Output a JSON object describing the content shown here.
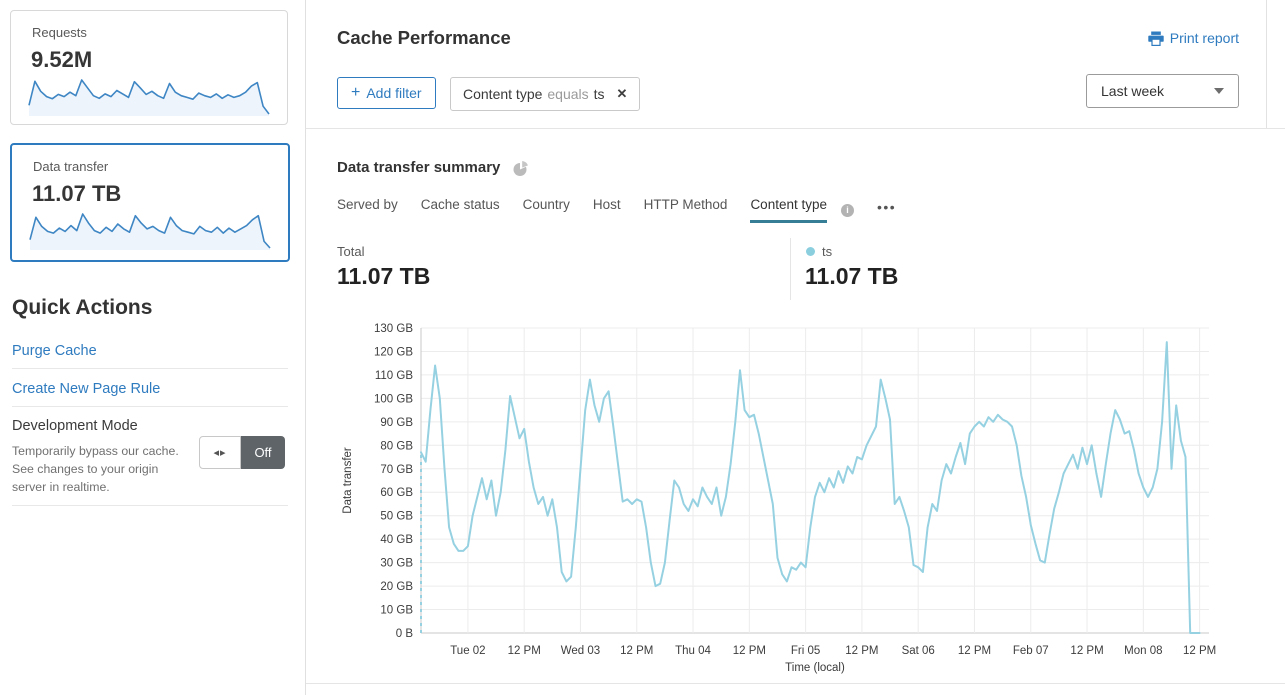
{
  "colors": {
    "accent": "#2f7bbf",
    "chart_line": "#96d1e2",
    "spark_line": "#3e86c4",
    "spark_fill": "#edf4fb",
    "tab_underline": "#367d96",
    "legend_dot": "#8bcfdf",
    "toggle_off_bg": "#5e6468",
    "grid": "#ececec",
    "axis": "#c8c8c8"
  },
  "sidebar": {
    "cards": [
      {
        "label": "Requests",
        "value": "9.52M",
        "selected": false,
        "spark": [
          30,
          85,
          62,
          50,
          45,
          55,
          50,
          60,
          52,
          88,
          70,
          52,
          46,
          56,
          50,
          64,
          56,
          48,
          84,
          70,
          55,
          62,
          52,
          46,
          80,
          60,
          52,
          48,
          44,
          58,
          52,
          48,
          56,
          46,
          54,
          48,
          52,
          60,
          74,
          82,
          28,
          10
        ]
      },
      {
        "label": "Data transfer",
        "value": "11.07 TB",
        "selected": true,
        "spark": [
          28,
          82,
          60,
          48,
          44,
          56,
          48,
          62,
          50,
          90,
          68,
          50,
          44,
          58,
          48,
          66,
          54,
          46,
          86,
          68,
          54,
          60,
          50,
          44,
          82,
          62,
          50,
          46,
          42,
          60,
          50,
          46,
          58,
          44,
          56,
          46,
          54,
          62,
          76,
          86,
          24,
          8
        ]
      }
    ],
    "quick_actions": {
      "title": "Quick Actions",
      "links": [
        "Purge Cache",
        "Create New Page Rule"
      ],
      "dev_mode": {
        "title": "Development Mode",
        "description": "Temporarily bypass our cache. See changes to your origin server in realtime.",
        "toggle_label": "Off"
      }
    }
  },
  "header": {
    "title": "Cache Performance",
    "print_label": "Print report",
    "add_filter_label": "Add filter",
    "filter_chip": {
      "field": "Content type",
      "operator": "equals",
      "value": "ts"
    },
    "time_range": "Last week"
  },
  "summary": {
    "title": "Data transfer summary",
    "tabs": [
      "Served by",
      "Cache status",
      "Country",
      "Host",
      "HTTP Method",
      "Content type"
    ],
    "active_tab": "Content type",
    "more_label": "•••",
    "total_label": "Total",
    "total_value": "11.07 TB",
    "legend": {
      "name": "ts",
      "value": "11.07 TB"
    }
  },
  "chart_data": {
    "type": "line",
    "title": "Data transfer summary",
    "ylabel": "Data transfer",
    "xlabel": "Time (local)",
    "unit": "GB",
    "ylim": [
      0,
      130
    ],
    "ytick_step": 10,
    "ytick_labels": [
      "0 B",
      "10 GB",
      "20 GB",
      "30 GB",
      "40 GB",
      "50 GB",
      "60 GB",
      "70 GB",
      "80 GB",
      "90 GB",
      "100 GB",
      "110 GB",
      "120 GB",
      "130 GB"
    ],
    "xtick_labels": [
      "Tue 02",
      "12 PM",
      "Wed 03",
      "12 PM",
      "Thu 04",
      "12 PM",
      "Fri 05",
      "12 PM",
      "Sat 06",
      "12 PM",
      "Feb 07",
      "12 PM",
      "Mon 08",
      "12 PM"
    ],
    "xtick_hours": [
      10,
      22,
      34,
      46,
      58,
      70,
      82,
      94,
      106,
      118,
      130,
      142,
      154,
      166
    ],
    "total_hours": 168,
    "interval_hours": 1,
    "grid": true,
    "start_dashed": true,
    "series": [
      {
        "name": "ts",
        "values": [
          77,
          73,
          95,
          114,
          100,
          70,
          45,
          38,
          35,
          35,
          37,
          50,
          58,
          66,
          57,
          65,
          50,
          60,
          78,
          101,
          92,
          83,
          87,
          73,
          62,
          55,
          58,
          50,
          57,
          45,
          26,
          22,
          24,
          45,
          70,
          95,
          108,
          97,
          90,
          100,
          103,
          88,
          72,
          56,
          57,
          55,
          57,
          56,
          45,
          30,
          20,
          21,
          30,
          48,
          65,
          62,
          55,
          52,
          57,
          54,
          62,
          58,
          55,
          62,
          50,
          58,
          72,
          90,
          112,
          95,
          92,
          93,
          85,
          75,
          65,
          55,
          32,
          25,
          22,
          28,
          27,
          30,
          28,
          45,
          58,
          64,
          60,
          66,
          62,
          69,
          64,
          71,
          68,
          75,
          74,
          80,
          84,
          88,
          108,
          100,
          91,
          55,
          58,
          52,
          45,
          29,
          28,
          26,
          45,
          55,
          52,
          65,
          72,
          68,
          75,
          81,
          72,
          85,
          88,
          90,
          88,
          92,
          90,
          93,
          91,
          90,
          88,
          80,
          67,
          58,
          46,
          38,
          31,
          30,
          42,
          53,
          60,
          68,
          72,
          76,
          70,
          79,
          72,
          80,
          68,
          58,
          72,
          85,
          95,
          91,
          85,
          86,
          78,
          68,
          62,
          58,
          62,
          70,
          90,
          124,
          70,
          97,
          82,
          75,
          0,
          0,
          0
        ]
      }
    ]
  }
}
